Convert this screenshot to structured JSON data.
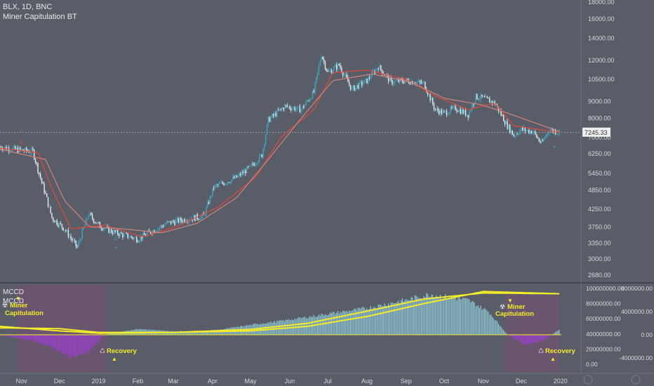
{
  "header": {
    "symbol_line": "BLX, 1D, BNC",
    "indicator": "Miner Capitulation BT"
  },
  "sub_labels": [
    "MCCD",
    "MCCD"
  ],
  "annotations": {
    "miner_capitulation": "Miner Capitulation",
    "recovery": "Recovery",
    "marker_buy": "+",
    "marker_sell": "-"
  },
  "colors": {
    "background": "#585d68",
    "candle_up": "#3fa6c5",
    "ema_fast": "#e24a3b",
    "ema_slow": "#d4827a",
    "hist_pos": "#8fc8d5",
    "hist_neg": "#9b3fd0",
    "capitulation_zone": "#7a4f73",
    "oscillator_lines": "#f4eb2a"
  },
  "chart_data": [
    {
      "type": "line",
      "title": "BLX, 1D, BNC",
      "x_tick_labels": [
        "Nov",
        "Dec",
        "2019",
        "Feb",
        "Mar",
        "Apr",
        "May",
        "Jun",
        "Jul",
        "Aug",
        "Sep",
        "Oct",
        "Nov",
        "Dec",
        "2020"
      ],
      "y_tick_labels": [
        "2680.00",
        "3000.00",
        "3350.00",
        "3750.00",
        "4250.00",
        "4850.00",
        "5450.00",
        "6250.00",
        "7000.00",
        "8000.00",
        "9000.00",
        "10500.00",
        "12000.00",
        "14000.00",
        "16000.00",
        "18000.00"
      ],
      "scale": "log",
      "current_price": "7245.33",
      "series": [
        {
          "style": "candles",
          "x": [
            "2018-10-15",
            "2018-11-01",
            "2018-11-10",
            "2018-11-14",
            "2018-11-20",
            "2018-11-25",
            "2018-12-05",
            "2018-12-15",
            "2018-12-24",
            "2019-01-01",
            "2019-01-10",
            "2019-01-20",
            "2019-02-01",
            "2019-02-10",
            "2019-02-24",
            "2019-03-10",
            "2019-03-25",
            "2019-04-02",
            "2019-04-20",
            "2019-05-01",
            "2019-05-10",
            "2019-05-15",
            "2019-05-28",
            "2019-06-10",
            "2019-06-20",
            "2019-06-26",
            "2019-07-01",
            "2019-07-10",
            "2019-07-20",
            "2019-08-01",
            "2019-08-10",
            "2019-08-20",
            "2019-09-01",
            "2019-09-15",
            "2019-09-24",
            "2019-10-01",
            "2019-10-10",
            "2019-10-20",
            "2019-10-26",
            "2019-11-01",
            "2019-11-10",
            "2019-11-20",
            "2019-11-25",
            "2019-12-01",
            "2019-12-10",
            "2019-12-17",
            "2019-12-23",
            "2019-12-31"
          ],
          "y": [
            6550,
            6400,
            6350,
            5600,
            4700,
            4000,
            3700,
            3250,
            4100,
            3800,
            3650,
            3550,
            3450,
            3600,
            3850,
            3950,
            4050,
            4950,
            5300,
            5700,
            6200,
            7900,
            8700,
            8500,
            9600,
            12500,
            11000,
            11600,
            9800,
            10400,
            11500,
            10300,
            10400,
            10200,
            8500,
            8300,
            8600,
            8200,
            9300,
            9200,
            8900,
            7600,
            7100,
            7400,
            7300,
            6700,
            7400,
            7245
          ]
        },
        {
          "name": "",
          "style": "ema_fast",
          "x": [
            "2018-10-15",
            "2018-11-14",
            "2018-11-25",
            "2018-12-10",
            "2019-01-05",
            "2019-02-05",
            "2019-03-05",
            "2019-04-05",
            "2019-05-05",
            "2019-05-25",
            "2019-06-20",
            "2019-07-05",
            "2019-08-01",
            "2019-09-01",
            "2019-09-25",
            "2019-10-20",
            "2019-11-10",
            "2019-11-25",
            "2019-12-31"
          ],
          "y": [
            6500,
            6300,
            4900,
            3700,
            3800,
            3500,
            3780,
            4300,
            5300,
            7000,
            8500,
            11000,
            11200,
            10500,
            9300,
            8500,
            8900,
            7600,
            7250
          ]
        },
        {
          "name": "",
          "style": "ema_slow",
          "x": [
            "2018-10-15",
            "2018-11-20",
            "2018-12-05",
            "2018-12-25",
            "2019-01-20",
            "2019-02-20",
            "2019-03-20",
            "2019-04-20",
            "2019-05-15",
            "2019-06-10",
            "2019-07-05",
            "2019-08-05",
            "2019-09-05",
            "2019-10-01",
            "2019-10-30",
            "2019-11-20",
            "2019-12-31"
          ],
          "y": [
            6450,
            6000,
            4500,
            3750,
            3700,
            3600,
            3850,
            4600,
            6000,
            8000,
            10400,
            10900,
            10300,
            9200,
            8800,
            8300,
            7300
          ]
        }
      ]
    },
    {
      "type": "bar",
      "title": "MCCD",
      "left_axis_labels": [
        "0.00",
        "20000000.00",
        "40000000.00",
        "60000000.00",
        "80000000.00",
        "100000000.00"
      ],
      "right_axis_labels": [
        "8000000.00",
        "4000000.00",
        "0.00",
        "-4000000.00"
      ],
      "histogram": {
        "x": [
          "2018-10-15",
          "2018-11-10",
          "2018-11-25",
          "2018-12-10",
          "2018-12-25",
          "2019-01-05",
          "2019-02-01",
          "2019-03-01",
          "2019-04-01",
          "2019-05-01",
          "2019-06-01",
          "2019-07-01",
          "2019-08-01",
          "2019-09-01",
          "2019-09-20",
          "2019-10-01",
          "2019-10-20",
          "2019-11-05",
          "2019-11-15",
          "2019-11-20",
          "2019-12-05",
          "2019-12-20",
          "2019-12-31"
        ],
        "y": [
          -100000,
          -1000000,
          -2200000,
          -4000000,
          -2800000,
          0,
          1000000,
          600000,
          700000,
          1700000,
          2600000,
          3600000,
          4600000,
          6000000,
          7000000,
          6600000,
          6000000,
          4000000,
          1400000,
          0,
          -1800000,
          -800000,
          900000
        ]
      },
      "series": [
        {
          "name": "",
          "x": [
            "2018-10-15",
            "2018-12-01",
            "2019-01-01",
            "2019-03-01",
            "2019-05-01",
            "2019-06-15",
            "2019-08-01",
            "2019-09-15",
            "2019-11-01",
            "2019-12-31"
          ],
          "y": [
            50000000,
            44000000,
            41000000,
            42000000,
            46000000,
            54000000,
            70000000,
            86000000,
            94000000,
            93000000
          ]
        },
        {
          "name": "",
          "x": [
            "2018-10-15",
            "2018-12-01",
            "2019-01-01",
            "2019-03-01",
            "2019-05-01",
            "2019-06-15",
            "2019-08-01",
            "2019-09-15",
            "2019-11-01",
            "2019-12-31"
          ],
          "y": [
            48000000,
            47000000,
            42000000,
            42000000,
            44000000,
            50000000,
            63000000,
            80000000,
            96000000,
            93000000
          ]
        }
      ]
    }
  ]
}
